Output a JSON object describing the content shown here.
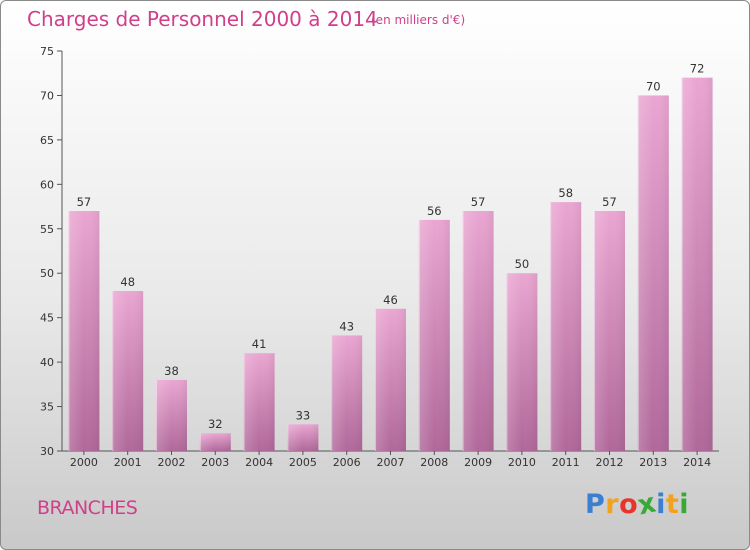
{
  "header": {
    "title": "Charges de Personnel 2000 à 2014",
    "subtitle": "(en milliers d'€)"
  },
  "footer": {
    "commune": "BRANCHES",
    "logo_letters": [
      "P",
      "r",
      "o",
      "x",
      "i",
      "t",
      "i"
    ],
    "logo_colors": [
      "#3a7fd0",
      "#f2a21b",
      "#e8342b",
      "#39a935",
      "#3a7fd0",
      "#f2a21b",
      "#39a935"
    ]
  },
  "colors": {
    "bar_top": "#eaa6d2",
    "bar_bottom": "#b0689a",
    "accent": "#d0408a"
  },
  "chart_data": {
    "type": "bar",
    "categories": [
      "2000",
      "2001",
      "2002",
      "2003",
      "2004",
      "2005",
      "2006",
      "2007",
      "2008",
      "2009",
      "2010",
      "2011",
      "2012",
      "2013",
      "2014"
    ],
    "values": [
      57,
      48,
      38,
      32,
      41,
      33,
      43,
      46,
      56,
      57,
      50,
      58,
      57,
      70,
      72
    ],
    "value_labels": [
      "57",
      "48",
      "38",
      "32",
      "41",
      "33",
      "43",
      "46",
      "56",
      "57",
      "50",
      "58",
      "57",
      "70",
      "72"
    ],
    "ylim": [
      30,
      75
    ],
    "yticks": [
      "30",
      "35",
      "40",
      "45",
      "50",
      "55",
      "60",
      "65",
      "70",
      "75"
    ],
    "grid": false
  }
}
